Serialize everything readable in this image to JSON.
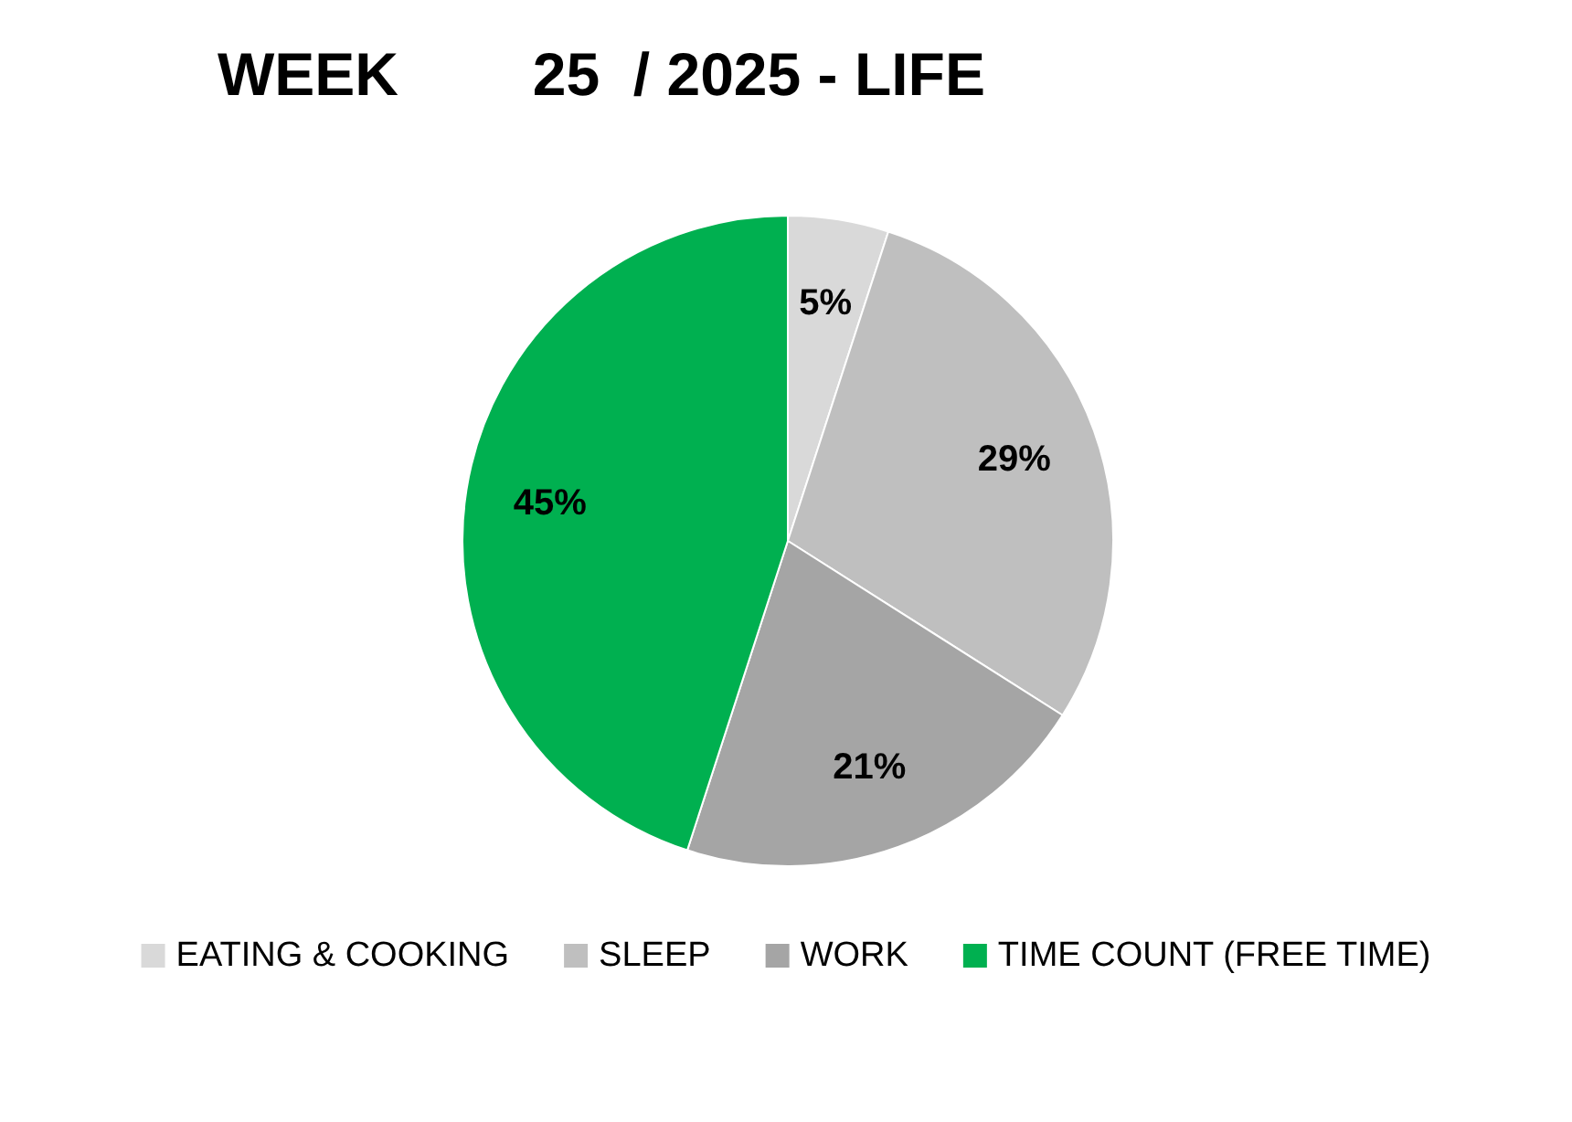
{
  "chart_data": {
    "type": "pie",
    "title": "WEEK        25  / 2025 - LIFE",
    "categories": [
      "EATING & COOKING",
      "SLEEP",
      "WORK",
      "TIME COUNT (FREE TIME)"
    ],
    "values": [
      5,
      29,
      21,
      45
    ],
    "colors": [
      "#d9d9d9",
      "#bfbfbf",
      "#a5a5a5",
      "#00b050"
    ],
    "value_labels": [
      "5%",
      "29%",
      "21%",
      "45%"
    ],
    "legend": "bottom"
  }
}
